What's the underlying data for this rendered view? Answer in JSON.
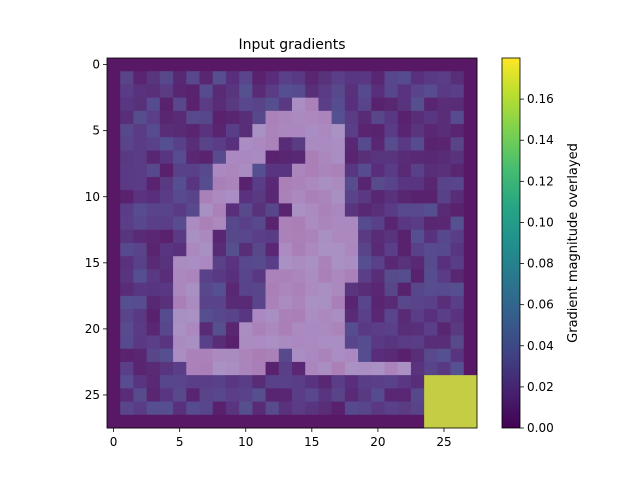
{
  "chart_data": {
    "type": "heatmap",
    "title": "Input gradients",
    "xlabel": "",
    "ylabel": "",
    "x_ticks": [
      "0",
      "5",
      "10",
      "15",
      "20",
      "25"
    ],
    "y_ticks": [
      "0",
      "5",
      "10",
      "15",
      "20",
      "25"
    ],
    "xlim": [
      -0.5,
      27.5
    ],
    "ylim": [
      27.5,
      -0.5
    ],
    "grid": false,
    "colormap": "viridis",
    "colorbar": {
      "label": "Gradient magnitude overlayed",
      "range": [
        0.0,
        0.18
      ],
      "ticks": [
        "0.00",
        "0.02",
        "0.04",
        "0.06",
        "0.08",
        "0.10",
        "0.12",
        "0.14",
        "0.16"
      ]
    },
    "image_rows": [
      "0000000000000000000000000000",
      "0000000000000000000000000000",
      "0000000000000000000000000000",
      "0000000000000011000000000000",
      "0000000000001111100000000000",
      "0000000000011111110000000000",
      "0000000000111001110000000000",
      "0000000001110001110000000000",
      "0000000011100011110000000000",
      "0000000011000111110000000000",
      "0000000111000111110000000000",
      "0000000110000011110000000000",
      "0000001110000111111000000000",
      "0000001100000111111000000000",
      "0000001100000111111000000000",
      "0000011100000111111000000000",
      "0000011000001111111000000000",
      "0000011000001111110000000000",
      "0000011000001111110000000000",
      "0000011000011111110000000000",
      "0000011000111111110000000000",
      "0000011000111111110000000000",
      "0000011111111011111000000000",
      "0000001111110001111111100000",
      "0000000000000000000000000000",
      "0000000000000000000000000000",
      "0000000000000000000000000000",
      "0000000000000000000000000000"
    ],
    "gradient_hotspots": [
      {
        "row": 24,
        "col": 24,
        "value": 0.17
      },
      {
        "row": 24,
        "col": 25,
        "value": 0.17
      },
      {
        "row": 24,
        "col": 26,
        "value": 0.17
      },
      {
        "row": 24,
        "col": 27,
        "value": 0.17
      },
      {
        "row": 25,
        "col": 24,
        "value": 0.17
      },
      {
        "row": 25,
        "col": 25,
        "value": 0.17
      },
      {
        "row": 25,
        "col": 26,
        "value": 0.17
      },
      {
        "row": 25,
        "col": 27,
        "value": 0.17
      },
      {
        "row": 26,
        "col": 24,
        "value": 0.17
      },
      {
        "row": 26,
        "col": 25,
        "value": 0.17
      },
      {
        "row": 26,
        "col": 26,
        "value": 0.17
      },
      {
        "row": 26,
        "col": 27,
        "value": 0.17
      },
      {
        "row": 27,
        "col": 24,
        "value": 0.17
      },
      {
        "row": 27,
        "col": 25,
        "value": 0.17
      },
      {
        "row": 27,
        "col": 26,
        "value": 0.17
      },
      {
        "row": 27,
        "col": 27,
        "value": 0.17
      }
    ]
  }
}
